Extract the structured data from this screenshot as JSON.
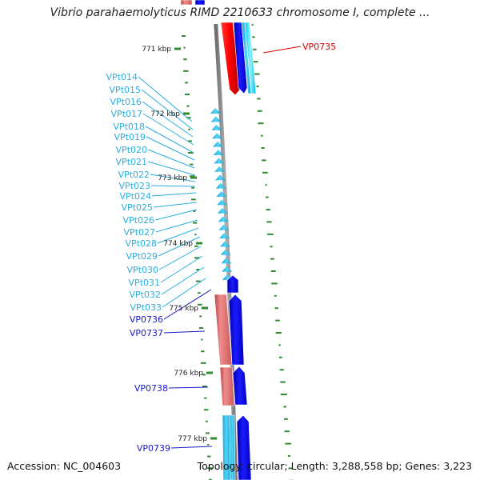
{
  "title": "Vibrio parahaemolyticus RIMD 2210633 chromosome I, complete ...",
  "footer": {
    "accession": "Accession: NC_004603",
    "summary": "Topology: circular; Length: 3,288,558 bp; Genes: 3,223"
  },
  "colors": {
    "backbone": "#8a8a8a",
    "cds": "#0000ee",
    "trna": "#33c3ee",
    "gene": "#e87878",
    "gene_strong": "#ff0000",
    "gc_skew": "#2e8b2e",
    "label_cds": "#1a1acc",
    "label_trna": "#2aaee0",
    "label_highlight": "#dd0000"
  },
  "ticks": [
    {
      "label": "771 kbp"
    },
    {
      "label": "772 kbp"
    },
    {
      "label": "773 kbp"
    },
    {
      "label": "774 kbp"
    },
    {
      "label": "775 kbp"
    },
    {
      "label": "776 kbp"
    },
    {
      "label": "777 kbp"
    }
  ],
  "features": {
    "right": [
      {
        "label": "VP0735",
        "kind": "highlight"
      }
    ],
    "left": [
      {
        "label": "VPt014",
        "kind": "trna"
      },
      {
        "label": "VPt015",
        "kind": "trna"
      },
      {
        "label": "VPt016",
        "kind": "trna"
      },
      {
        "label": "VPt017",
        "kind": "trna"
      },
      {
        "label": "VPt018",
        "kind": "trna"
      },
      {
        "label": "VPt019",
        "kind": "trna"
      },
      {
        "label": "VPt020",
        "kind": "trna"
      },
      {
        "label": "VPt021",
        "kind": "trna"
      },
      {
        "label": "VPt022",
        "kind": "trna"
      },
      {
        "label": "VPt023",
        "kind": "trna"
      },
      {
        "label": "VPt024",
        "kind": "trna"
      },
      {
        "label": "VPt025",
        "kind": "trna"
      },
      {
        "label": "VPt026",
        "kind": "trna"
      },
      {
        "label": "VPt027",
        "kind": "trna"
      },
      {
        "label": "VPt028",
        "kind": "trna"
      },
      {
        "label": "VPt029",
        "kind": "trna"
      },
      {
        "label": "VPt030",
        "kind": "trna"
      },
      {
        "label": "VPt031",
        "kind": "trna"
      },
      {
        "label": "VPt032",
        "kind": "trna"
      },
      {
        "label": "VPt033",
        "kind": "trna"
      },
      {
        "label": "VP0736",
        "kind": "cds"
      },
      {
        "label": "VP0737",
        "kind": "cds"
      },
      {
        "label": "VP0738",
        "kind": "cds"
      },
      {
        "label": "VP0739",
        "kind": "cds"
      }
    ]
  }
}
